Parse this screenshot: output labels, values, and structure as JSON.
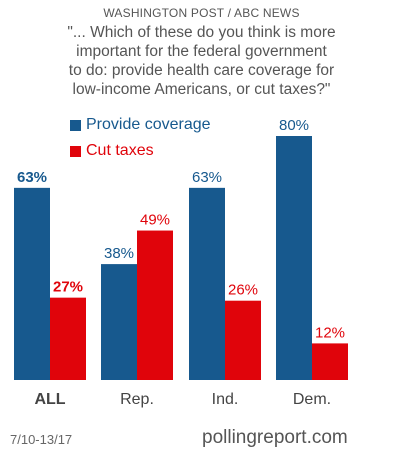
{
  "source": "WASHINGTON POST / ABC NEWS",
  "question_lines": [
    "\"... Which of these do you think is more",
    "important for the federal government",
    "to do: provide health care coverage for",
    "low-income Americans, or cut taxes?\""
  ],
  "footer": {
    "date": "7/10-13/17",
    "site": "pollingreport.com"
  },
  "chart_data": {
    "type": "bar",
    "categories": [
      "ALL",
      "Rep.",
      "Ind.",
      "Dem."
    ],
    "series": [
      {
        "name": "Provide coverage",
        "color": "#17598e",
        "values": [
          63,
          38,
          63,
          80
        ],
        "labels": [
          "63%",
          "38%",
          "63%",
          "80%"
        ]
      },
      {
        "name": "Cut taxes",
        "color": "#e0040b",
        "values": [
          27,
          49,
          26,
          12
        ],
        "labels": [
          "27%",
          "49%",
          "26%",
          "12%"
        ]
      }
    ],
    "ylim": [
      0,
      100
    ],
    "grid": false,
    "legend": "top-left"
  }
}
